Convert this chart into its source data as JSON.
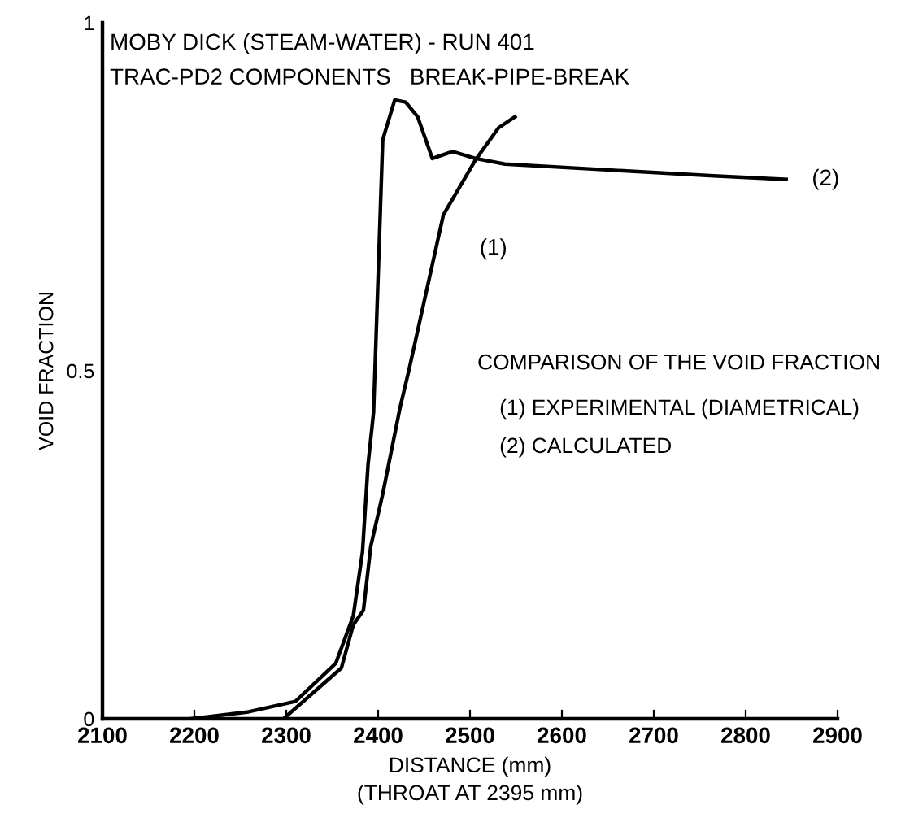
{
  "chart_data": {
    "type": "line",
    "title": "MOBY DICK (STEAM-WATER) - RUN 401",
    "subtitle": "TRAC-PD2 COMPONENTS   BREAK-PIPE-BREAK",
    "xlabel": "DISTANCE (mm)\n(THROAT AT 2395 mm)",
    "ylabel": "VOID FRACTION",
    "series": [
      {
        "color": "#000000",
        "x": [
          2297,
          2360,
          2373,
          2384,
          2392,
          2405,
          2424,
          2433,
          2471,
          2506,
          2531,
          2549
        ],
        "values": [
          0,
          0.073,
          0.135,
          0.156,
          0.248,
          0.323,
          0.448,
          0.498,
          0.724,
          0.803,
          0.849,
          0.865
        ]
      },
      {
        "color": "#000000",
        "x": [
          2196,
          2259,
          2310,
          2354,
          2373,
          2383,
          2389,
          2395,
          2405,
          2418,
          2430,
          2443,
          2459,
          2481,
          2506,
          2538,
          2645,
          2765,
          2844
        ],
        "values": [
          0,
          0.01,
          0.025,
          0.08,
          0.148,
          0.24,
          0.365,
          0.44,
          0.832,
          0.889,
          0.886,
          0.865,
          0.805,
          0.815,
          0.805,
          0.797,
          0.789,
          0.78,
          0.775
        ]
      }
    ],
    "annotations": [
      "(1)",
      "(2)",
      "COMPARISON OF THE VOID FRACTION",
      "(1) EXPERIMENTAL (DIAMETRICAL)",
      "(2) CALCULATED"
    ],
    "xlim": [
      2100,
      2900
    ],
    "ylim": [
      0,
      1
    ],
    "xticks": [
      2100,
      2200,
      2300,
      2400,
      2500,
      2600,
      2700,
      2800,
      2900
    ],
    "yticks": [
      0,
      0.5,
      1
    ],
    "grid": false,
    "legend": false,
    "line_style": "solid",
    "marker": "none"
  }
}
